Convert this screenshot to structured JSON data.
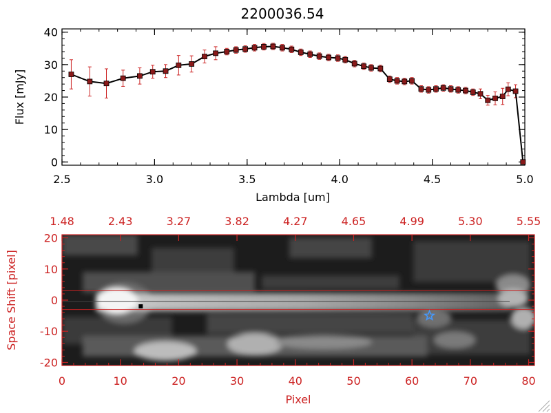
{
  "chart_data": [
    {
      "type": "line",
      "title": "2200036.54",
      "xlabel": "Lambda [um]",
      "ylabel": "Flux [mJy]",
      "xlim": [
        2.5,
        5.0
      ],
      "ylim": [
        -1,
        41
      ],
      "x_ticks": [
        "2.5",
        "3.0",
        "3.5",
        "4.0",
        "4.5",
        "5.0"
      ],
      "y_ticks": [
        "0",
        "10",
        "20",
        "30",
        "40"
      ],
      "line_color": "#000000",
      "marker_color": "#8b1a1a",
      "errorbar_color": "#cc2222",
      "series": [
        {
          "x": [
            2.55,
            2.65,
            2.74,
            2.83,
            2.92,
            2.99,
            3.06,
            3.13,
            3.2,
            3.27,
            3.33,
            3.39,
            3.44,
            3.49,
            3.54,
            3.59,
            3.64,
            3.69,
            3.74,
            3.79,
            3.84,
            3.89,
            3.94,
            3.99,
            4.03,
            4.08,
            4.13,
            4.17,
            4.22,
            4.27,
            4.31,
            4.35,
            4.39,
            4.44,
            4.48,
            4.52,
            4.56,
            4.6,
            4.64,
            4.68,
            4.72,
            4.76,
            4.8,
            4.84,
            4.88,
            4.91,
            4.95,
            4.99
          ],
          "y": [
            27,
            24.8,
            24.2,
            25.8,
            26.5,
            27.8,
            28,
            29.8,
            30.2,
            32.5,
            33.5,
            34,
            34.5,
            34.8,
            35.2,
            35.5,
            35.6,
            35.2,
            34.7,
            33.8,
            33.2,
            32.6,
            32.2,
            32,
            31.5,
            30.3,
            29.5,
            29,
            28.8,
            25.5,
            25,
            24.8,
            25,
            22.5,
            22.2,
            22.5,
            22.8,
            22.5,
            22.2,
            22,
            21.5,
            21,
            19,
            19.6,
            20.2,
            22.4,
            21.8,
            0
          ],
          "err": [
            4.5,
            4.5,
            4.5,
            2.5,
            2.5,
            2,
            2,
            3,
            2.5,
            2,
            2,
            1,
            1,
            1,
            1,
            1,
            1,
            1,
            1,
            1,
            1,
            1,
            1,
            1,
            1,
            1,
            1,
            1,
            1,
            1,
            1,
            1,
            1,
            1,
            1,
            1,
            1,
            1,
            1,
            1,
            1,
            1.5,
            1.5,
            2,
            2.5,
            2,
            2,
            0
          ]
        }
      ]
    },
    {
      "type": "heatmap",
      "xlabel": "Pixel",
      "ylabel": "Space Shift [pixel]",
      "xlim": [
        0,
        81
      ],
      "ylim": [
        -21,
        21
      ],
      "x_ticks": [
        "0",
        "10",
        "20",
        "30",
        "40",
        "50",
        "60",
        "70",
        "80"
      ],
      "y_ticks": [
        "-20",
        "-10",
        "0",
        "10",
        "20"
      ],
      "top_ticks": [
        "1.48",
        "2.43",
        "3.27",
        "3.82",
        "4.27",
        "4.65",
        "4.99",
        "5.30",
        "5.55"
      ],
      "aperture_lines_y": [
        3,
        -3
      ],
      "star_marker": {
        "x": 63,
        "y": -5
      },
      "square_marker": {
        "x": 13.5,
        "y": -2
      },
      "axis_color": "#cc2222",
      "star_color": "#4499ff"
    }
  ]
}
